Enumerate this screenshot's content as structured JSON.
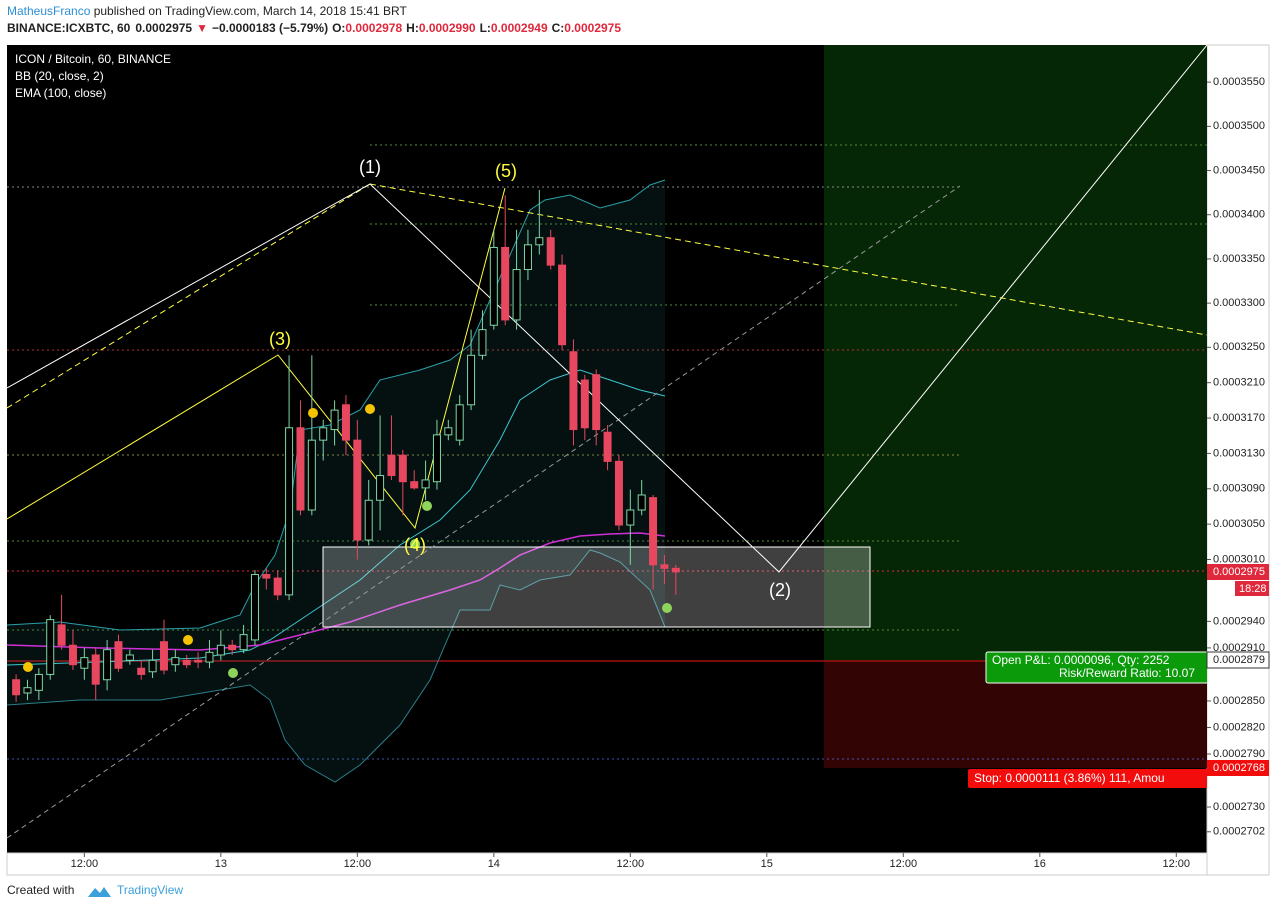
{
  "header": {
    "author": "MatheusFranco",
    "published": " published on TradingView.com, March 14, 2018 15:41 BRT",
    "symbol": "BINANCE:ICXBTC, 60",
    "price": "0.0002975",
    "arrow": "▼",
    "change": "−0.0000183 (−5.79%)",
    "ohlc": [
      {
        "label": "O:",
        "value": "0.0002978"
      },
      {
        "label": "H:",
        "value": "0.0002990"
      },
      {
        "label": "L:",
        "value": "0.0002949"
      },
      {
        "label": "C:",
        "value": "0.0002975"
      }
    ]
  },
  "chart_data": {
    "type": "candlestick",
    "title": "ICON / Bitcoin, 60, BINANCE",
    "indicators": [
      "BB (20, close, 2)",
      "EMA (100, close)"
    ],
    "up_color": "#7fd7a6",
    "down_color": "#e8485f",
    "x": [
      1,
      2,
      3,
      4,
      5,
      6,
      7,
      8,
      9,
      10,
      11,
      12,
      13,
      14,
      15,
      16,
      17,
      18,
      19,
      20,
      21,
      22,
      23,
      24,
      25,
      26,
      27,
      28,
      29,
      30,
      31,
      32,
      33,
      34,
      35,
      36,
      37,
      38,
      39,
      40,
      41,
      42,
      43,
      44,
      45,
      46,
      47,
      48,
      49,
      50,
      51,
      52,
      53,
      54,
      55,
      56,
      57,
      58,
      59
    ],
    "open": [
      0.0002874,
      0.0002859,
      0.0002862,
      0.000288,
      0.0002936,
      0.0002913,
      0.0002887,
      0.0002902,
      0.0002874,
      0.0002917,
      0.0002896,
      0.0002887,
      0.0002883,
      0.0002917,
      0.0002891,
      0.0002896,
      0.0002896,
      0.0002894,
      0.0002902,
      0.0002913,
      0.0002908,
      0.0002919,
      0.0002993,
      0.0002989,
      0.000297,
      0.0003159,
      0.0003066,
      0.0003145,
      0.0003157,
      0.0003185,
      0.0003145,
      0.0003032,
      0.0003077,
      0.0003128,
      0.0003128,
      0.0003098,
      0.0003091,
      0.0003098,
      0.0003151,
      0.0003145,
      0.0003185,
      0.0003241,
      0.0003275,
      0.0003363,
      0.0003281,
      0.0003338,
      0.0003366,
      0.0003374,
      0.0003343,
      0.0003245,
      0.0003213,
      0.0003219,
      0.0003154,
      0.0003121,
      0.0003049,
      0.0003066,
      0.000308,
      0.0003004,
      0.0003
    ],
    "high": [
      0.000288,
      0.0002874,
      0.0002887,
      0.0002947,
      0.000297,
      0.000293,
      0.000291,
      0.000291,
      0.0002919,
      0.0002925,
      0.0002908,
      0.0002896,
      0.0002908,
      0.0002942,
      0.0002908,
      0.0002902,
      0.0002905,
      0.0002919,
      0.000293,
      0.0002919,
      0.0002936,
      0.0002998,
      0.0003,
      0.0002998,
      0.0003241,
      0.000319,
      0.0003241,
      0.0003168,
      0.000319,
      0.0003196,
      0.0003168,
      0.00031,
      0.0003173,
      0.0003173,
      0.0003134,
      0.0003111,
      0.0003122,
      0.0003168,
      0.0003168,
      0.0003196,
      0.000327,
      0.0003292,
      0.0003383,
      0.0003422,
      0.0003383,
      0.0003383,
      0.0003428,
      0.0003383,
      0.0003355,
      0.0003259,
      0.0003219,
      0.0003225,
      0.0003162,
      0.0003128,
      0.0003089,
      0.00031,
      0.0003083,
      0.0003015,
      0.0003004
    ],
    "low": [
      0.0002849,
      0.0002851,
      0.0002851,
      0.0002874,
      0.0002908,
      0.0002885,
      0.0002874,
      0.0002851,
      0.0002862,
      0.0002883,
      0.0002891,
      0.0002874,
      0.0002876,
      0.000288,
      0.0002883,
      0.0002887,
      0.0002887,
      0.0002887,
      0.0002896,
      0.0002902,
      0.0002904,
      0.0002913,
      0.0002976,
      0.0002964,
      0.0002964,
      0.000306,
      0.000306,
      0.0003122,
      0.0003139,
      0.0003128,
      0.000301,
      0.0003026,
      0.0003043,
      0.00031,
      0.000306,
      0.0003089,
      0.0003077,
      0.0003089,
      0.0003145,
      0.0003139,
      0.0003179,
      0.0003236,
      0.000327,
      0.0003275,
      0.000327,
      0.0003326,
      0.0003355,
      0.0003338,
      0.0003247,
      0.0003139,
      0.0003145,
      0.0003139,
      0.0003111,
      0.0003043,
      0.0003004,
      0.000306,
      0.0002976,
      0.0002982,
      0.000297
    ],
    "close": [
      0.0002857,
      0.0002865,
      0.000288,
      0.0002942,
      0.0002913,
      0.0002891,
      0.0002899,
      0.0002869,
      0.0002908,
      0.0002887,
      0.0002902,
      0.000288,
      0.0002896,
      0.0002885,
      0.0002899,
      0.0002891,
      0.0002894,
      0.0002905,
      0.0002913,
      0.0002908,
      0.0002925,
      0.0002993,
      0.0002989,
      0.000297,
      0.0003159,
      0.0003066,
      0.0003145,
      0.0003159,
      0.0003179,
      0.0003145,
      0.0003032,
      0.0003077,
      0.0003105,
      0.0003105,
      0.0003098,
      0.0003091,
      0.00031,
      0.0003151,
      0.0003159,
      0.0003185,
      0.0003241,
      0.000327,
      0.0003363,
      0.0003281,
      0.0003338,
      0.0003366,
      0.0003374,
      0.0003343,
      0.0003253,
      0.0003157,
      0.0003159,
      0.0003157,
      0.0003121,
      0.0003049,
      0.0003066,
      0.0003083,
      0.0003004,
      0.0003,
      0.0002996
    ],
    "xlim": [
      0.2,
      105.7
    ],
    "xticks": [
      {
        "value": 7,
        "label": "12:00"
      },
      {
        "value": 19,
        "label": "13"
      },
      {
        "value": 31,
        "label": "12:00"
      },
      {
        "value": 43,
        "label": "14"
      },
      {
        "value": 55,
        "label": "12:00"
      },
      {
        "value": 67,
        "label": "15"
      },
      {
        "value": 79,
        "label": "12:00"
      },
      {
        "value": 91,
        "label": "16"
      },
      {
        "value": 103,
        "label": "12:00"
      }
    ],
    "ylim": [
      0.0002678,
      0.0003592
    ],
    "yticks": [
      {
        "value": 0.000355,
        "label": "0.0003550"
      },
      {
        "value": 0.00035,
        "label": "0.0003500"
      },
      {
        "value": 0.000345,
        "label": "0.0003450"
      },
      {
        "value": 0.00034,
        "label": "0.0003400"
      },
      {
        "value": 0.000335,
        "label": "0.0003350"
      },
      {
        "value": 0.00033,
        "label": "0.0003300"
      },
      {
        "value": 0.000325,
        "label": "0.0003250"
      },
      {
        "value": 0.000321,
        "label": "0.0003210"
      },
      {
        "value": 0.000317,
        "label": "0.0003170"
      },
      {
        "value": 0.000313,
        "label": "0.0003130"
      },
      {
        "value": 0.000309,
        "label": "0.0003090"
      },
      {
        "value": 0.000305,
        "label": "0.0003050"
      },
      {
        "value": 0.000301,
        "label": "0.0003010"
      },
      {
        "value": 0.000294,
        "label": "0.0002940"
      },
      {
        "value": 0.000291,
        "label": "0.0002910"
      },
      {
        "value": 0.000285,
        "label": "0.0002850"
      },
      {
        "value": 0.000282,
        "label": "0.0002820"
      },
      {
        "value": 0.000279,
        "label": "0.0002790"
      },
      {
        "value": 0.000273,
        "label": "0.0002730"
      },
      {
        "value": 0.0002702,
        "label": "0.0002702"
      }
    ],
    "annotations": [
      "(1)",
      "(3)",
      "(5)",
      "(4)",
      "(2)"
    ],
    "price_labels": {
      "current": "0.0002975",
      "countdown": "18:28",
      "entry": "0.0002879",
      "stop": "0.0002768"
    },
    "position": {
      "pnl": "Open P&L: 0.0000096, Qty: 2252",
      "ratio": "Risk/Reward Ratio: 10.07",
      "stop": "Stop: 0.0000111 (3.86%) 111, Amou"
    }
  },
  "footer": {
    "created": "Created with",
    "brand": "TradingView"
  }
}
